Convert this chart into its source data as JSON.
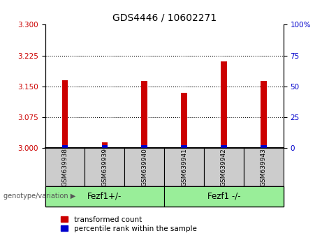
{
  "title": "GDS4446 / 10602271",
  "samples": [
    "GSM639938",
    "GSM639939",
    "GSM639940",
    "GSM639941",
    "GSM639942",
    "GSM639943"
  ],
  "red_values": [
    3.165,
    3.015,
    3.163,
    3.135,
    3.21,
    3.163
  ],
  "blue_values": [
    3.008,
    3.007,
    3.008,
    3.007,
    3.008,
    3.008
  ],
  "ylim_left": [
    3.0,
    3.3
  ],
  "yticks_left": [
    3.0,
    3.075,
    3.15,
    3.225,
    3.3
  ],
  "ylim_right": [
    0,
    100
  ],
  "yticks_right": [
    0,
    25,
    50,
    75,
    100
  ],
  "yticklabels_right": [
    "0",
    "25",
    "50",
    "75",
    "100%"
  ],
  "left_tick_color": "#cc0000",
  "right_tick_color": "#0000cc",
  "bar_width": 0.15,
  "red_color": "#cc0000",
  "blue_color": "#0000cc",
  "group1_label": "Fezf1+/-",
  "group2_label": "Fezf1 -/-",
  "group1_indices": [
    0,
    1,
    2
  ],
  "group2_indices": [
    3,
    4,
    5
  ],
  "group_box_color": "#99ee99",
  "sample_box_color": "#cccccc",
  "legend_red_label": "transformed count",
  "legend_blue_label": "percentile rank within the sample",
  "genotype_label": "genotype/variation",
  "title_fontsize": 10,
  "axis_fontsize": 7.5,
  "legend_fontsize": 7.5,
  "group_label_fontsize": 8.5,
  "sample_fontsize": 6.5
}
